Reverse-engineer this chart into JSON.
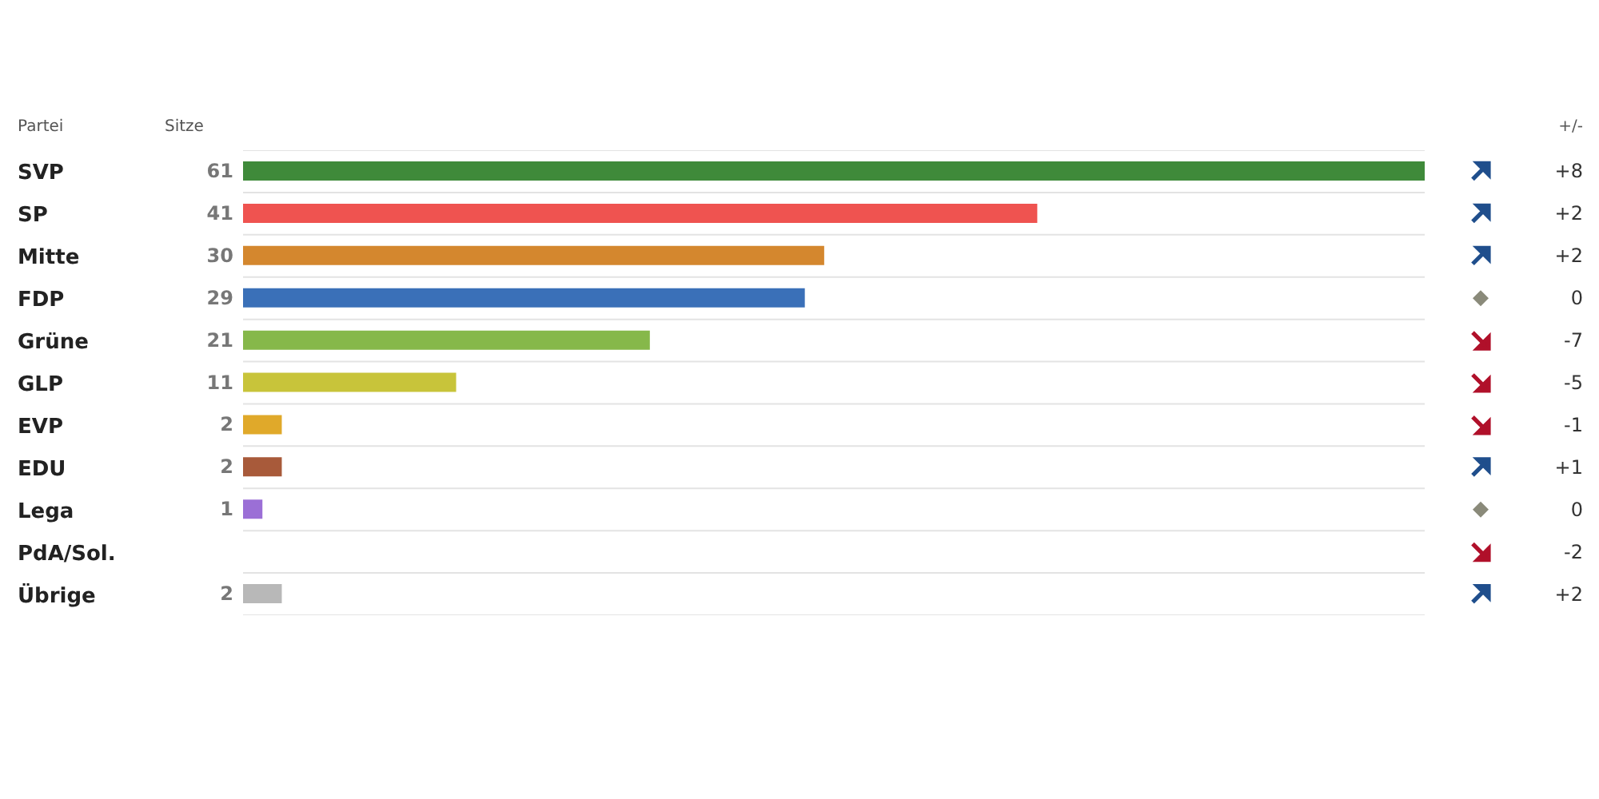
{
  "chart_data": {
    "type": "bar",
    "orientation": "horizontal",
    "ylabel": "Partei",
    "xlabel": "Sitze",
    "categories": [
      "SVP",
      "SP",
      "Mitte",
      "FDP",
      "Grüne",
      "GLP",
      "EVP",
      "EDU",
      "Lega",
      "PdA/Sol.",
      "Übrige"
    ],
    "values": [
      61,
      41,
      30,
      29,
      21,
      11,
      2,
      2,
      1,
      0,
      2
    ],
    "colors": [
      "#3f8a3a",
      "#ef5350",
      "#d4872e",
      "#3a70b8",
      "#86b84a",
      "#c8c43a",
      "#e0a92a",
      "#a85a3a",
      "#9b6fd6",
      "#cccccc",
      "#b8b8b8"
    ],
    "value_labels": [
      "61",
      "41",
      "30",
      "29",
      "21",
      "11",
      "2",
      "2",
      "1",
      null,
      "2"
    ],
    "grid": "y",
    "legend": false,
    "annotations": [
      "+/-",
      "+8",
      "+2",
      "+2",
      "0",
      "-7",
      "-5",
      "-1",
      "+1",
      "0",
      "-2",
      "+2"
    ]
  }
}
